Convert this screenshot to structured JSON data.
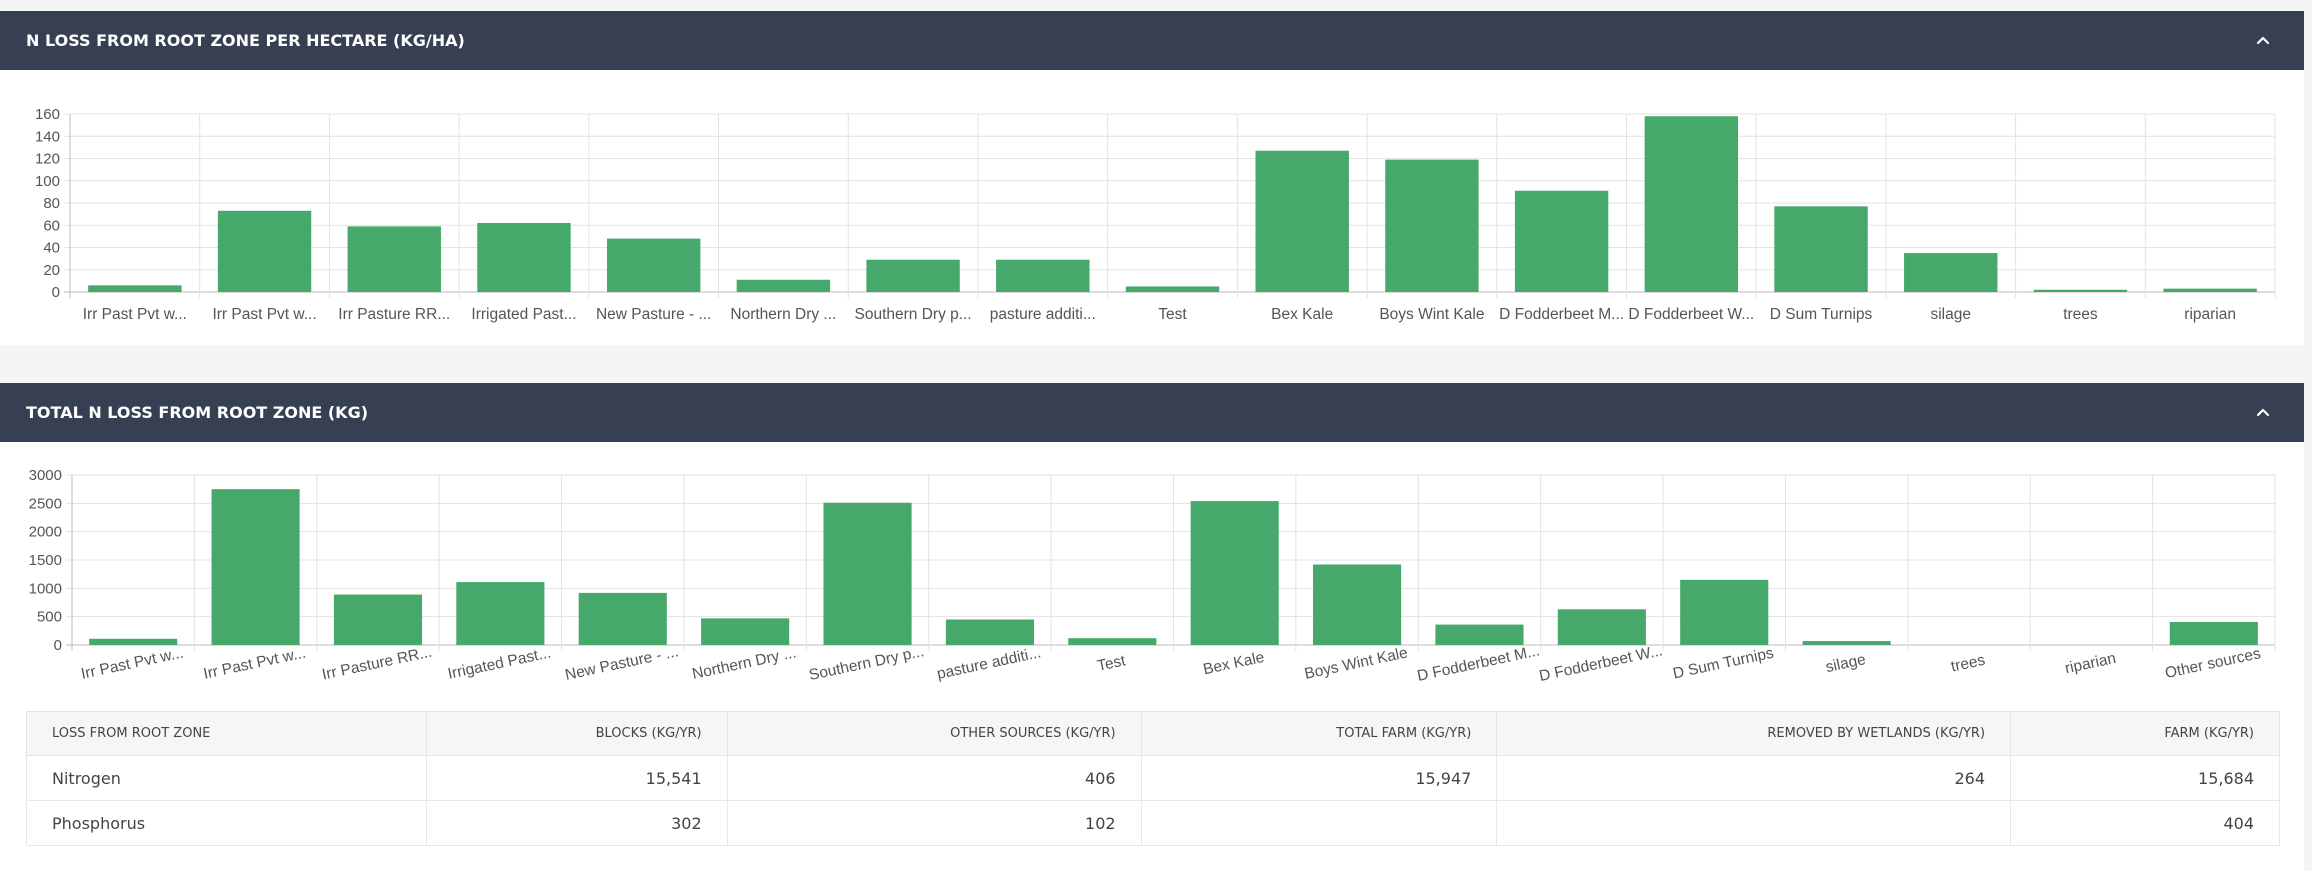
{
  "panel1": {
    "title": "N LOSS FROM ROOT ZONE PER HECTARE (KG/HA)"
  },
  "panel2": {
    "title": "TOTAL N LOSS FROM ROOT ZONE (KG)"
  },
  "colors": {
    "header_bg": "#373f52",
    "bar": "#46a96b",
    "grid": "#e3e3e3"
  },
  "icons": {
    "collapse": "chevron-up-icon"
  },
  "chart_data": [
    {
      "type": "bar",
      "title": "N LOSS FROM ROOT ZONE PER HECTARE (KG/HA)",
      "categories": [
        "Irr Past Pvt w...",
        "Irr Past Pvt w...",
        "Irr Pasture RR...",
        "Irrigated Past...",
        "New Pasture - ...",
        "Northern  Dry ...",
        "Southern Dry p...",
        "pasture additi...",
        "Test",
        "Bex Kale",
        "Boys Wint Kale",
        "D Fodderbeet M...",
        "D Fodderbeet W...",
        "D Sum Turnips",
        "silage",
        "trees",
        "riparian"
      ],
      "values": [
        6,
        73,
        59,
        62,
        48,
        11,
        29,
        29,
        5,
        127,
        119,
        91,
        158,
        77,
        35,
        2,
        3
      ],
      "yticks": [
        "0",
        "20",
        "40",
        "60",
        "80",
        "100",
        "120",
        "140",
        "160"
      ],
      "ylim": [
        0,
        160
      ],
      "grid": true
    },
    {
      "type": "bar",
      "title": "TOTAL N LOSS FROM ROOT ZONE (KG)",
      "categories": [
        "Irr Past Pvt w...",
        "Irr Past Pvt w...",
        "Irr Pasture RR...",
        "Irrigated Past...",
        "New Pasture - ...",
        "Northern  Dry ...",
        "Southern Dry p...",
        "pasture additi...",
        "Test",
        "Bex Kale",
        "Boys Wint Kale",
        "D Fodderbeet M...",
        "D Fodderbeet W...",
        "D Sum Turnips",
        "silage",
        "trees",
        "riparian",
        "Other sources"
      ],
      "values": [
        110,
        2750,
        890,
        1110,
        920,
        470,
        2510,
        450,
        120,
        2540,
        1420,
        360,
        630,
        1150,
        70,
        0,
        0,
        406
      ],
      "yticks": [
        "0",
        "500",
        "1000",
        "1500",
        "2000",
        "2500",
        "3000"
      ],
      "ylim": [
        0,
        3000
      ],
      "grid": true
    }
  ],
  "table": {
    "headers": [
      "LOSS FROM ROOT ZONE",
      "BLOCKS (KG/YR)",
      "OTHER SOURCES (KG/YR)",
      "TOTAL FARM (KG/YR)",
      "REMOVED BY WETLANDS (KG/YR)",
      "FARM (KG/YR)"
    ],
    "rows": [
      [
        "Nitrogen",
        "15,541",
        "406",
        "15,947",
        "264",
        "15,684"
      ],
      [
        "Phosphorus",
        "302",
        "102",
        "",
        "",
        "404"
      ]
    ]
  }
}
